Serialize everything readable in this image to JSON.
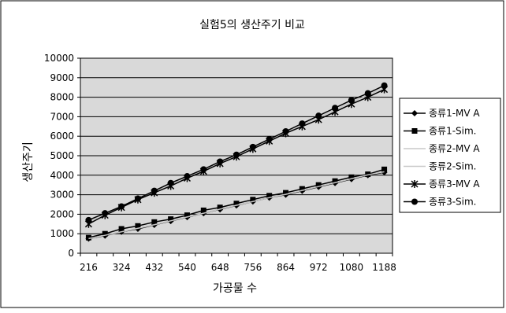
{
  "chart_data": {
    "type": "line",
    "title": "실험5의 생산주기 비교",
    "xlabel": "가공물 수",
    "ylabel": "생산주기",
    "categories": [
      "216",
      "270",
      "324",
      "378",
      "432",
      "486",
      "540",
      "594",
      "648",
      "702",
      "756",
      "810",
      "864",
      "918",
      "972",
      "1026",
      "1080",
      "1134",
      "1188"
    ],
    "tick_labels_x": [
      "216",
      "324",
      "432",
      "540",
      "648",
      "756",
      "864",
      "972",
      "1080",
      "1188"
    ],
    "tick_labels_y": [
      "0",
      "1000",
      "2000",
      "3000",
      "4000",
      "5000",
      "6000",
      "7000",
      "8000",
      "9000",
      "10000"
    ],
    "ylim": [
      0,
      10000
    ],
    "grid": true,
    "legend_position": "right",
    "series": [
      {
        "name": "종류1-MV A",
        "marker": "diamond",
        "color": "#000000",
        "values": [
          750,
          900,
          1100,
          1250,
          1450,
          1650,
          1850,
          2050,
          2250,
          2450,
          2650,
          2850,
          3000,
          3200,
          3400,
          3600,
          3800,
          4000,
          4150
        ]
      },
      {
        "name": "종류1-Sim.",
        "marker": "square",
        "color": "#000000",
        "values": [
          800,
          1000,
          1250,
          1400,
          1600,
          1750,
          1950,
          2200,
          2350,
          2550,
          2750,
          2950,
          3100,
          3300,
          3500,
          3700,
          3900,
          4050,
          4300
        ]
      },
      {
        "name": "종류2-MV A",
        "marker": "none",
        "color": "#c8c8c8",
        "values": [
          750,
          920,
          1100,
          1280,
          1460,
          1660,
          1860,
          2050,
          2260,
          2460,
          2650,
          2850,
          3020,
          3220,
          3420,
          3620,
          3820,
          4020,
          4180
        ]
      },
      {
        "name": "종류2-Sim.",
        "marker": "none",
        "color": "#c8c8c8",
        "values": [
          1600,
          2050,
          2400,
          2800,
          3150,
          3550,
          3900,
          4300,
          4700,
          5050,
          5450,
          5800,
          6200,
          6600,
          6950,
          7350,
          7750,
          8100,
          8500
        ]
      },
      {
        "name": "종류3-MV A",
        "marker": "star",
        "color": "#000000",
        "values": [
          1500,
          1950,
          2350,
          2750,
          3100,
          3450,
          3850,
          4200,
          4600,
          4950,
          5350,
          5750,
          6150,
          6500,
          6850,
          7250,
          7650,
          8000,
          8400
        ]
      },
      {
        "name": "종류3-Sim.",
        "marker": "circle",
        "color": "#000000",
        "values": [
          1700,
          2050,
          2400,
          2800,
          3200,
          3600,
          3950,
          4300,
          4700,
          5050,
          5450,
          5850,
          6250,
          6650,
          7050,
          7450,
          7850,
          8200,
          8600
        ]
      }
    ]
  }
}
